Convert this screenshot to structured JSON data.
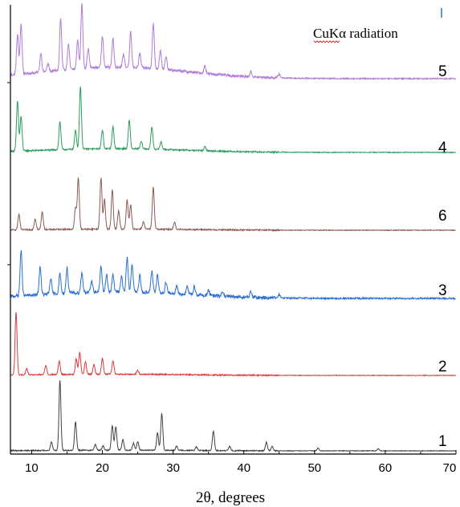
{
  "chart_data": {
    "type": "line",
    "title": "",
    "xlabel": "2θ, degrees",
    "ylabel": "",
    "xlim": [
      7,
      70
    ],
    "x_ticks": [
      10,
      20,
      30,
      40,
      50,
      60,
      70
    ],
    "grid": false,
    "annotation": "CuKα radiation",
    "series_order_top_to_bottom": [
      "5",
      "4",
      "6",
      "3",
      "2",
      "1"
    ],
    "series": [
      {
        "name": "5",
        "color": "#b07cd6",
        "baseline": 0.18,
        "noise": 0.02,
        "peaks": [
          [
            8.0,
            0.62
          ],
          [
            8.5,
            0.78
          ],
          [
            11.3,
            0.3
          ],
          [
            12.3,
            0.12
          ],
          [
            14.1,
            0.8
          ],
          [
            15.2,
            0.4
          ],
          [
            16.5,
            0.45
          ],
          [
            17.1,
            1.0
          ],
          [
            18.0,
            0.3
          ],
          [
            20.0,
            0.5
          ],
          [
            21.5,
            0.45
          ],
          [
            23.0,
            0.2
          ],
          [
            24.0,
            0.55
          ],
          [
            25.3,
            0.22
          ],
          [
            27.2,
            0.7
          ],
          [
            28.2,
            0.3
          ],
          [
            29.0,
            0.2
          ],
          [
            34.5,
            0.12
          ],
          [
            41.0,
            0.08
          ],
          [
            45.0,
            0.06
          ]
        ]
      },
      {
        "name": "4",
        "color": "#2e9b5e",
        "baseline": 0.06,
        "noise": 0.012,
        "peaks": [
          [
            8.0,
            0.8
          ],
          [
            8.5,
            0.55
          ],
          [
            14.0,
            0.45
          ],
          [
            16.2,
            0.3
          ],
          [
            16.9,
            1.0
          ],
          [
            20.0,
            0.3
          ],
          [
            21.5,
            0.35
          ],
          [
            23.8,
            0.45
          ],
          [
            25.5,
            0.12
          ],
          [
            27.0,
            0.35
          ],
          [
            28.3,
            0.12
          ],
          [
            34.5,
            0.06
          ]
        ]
      },
      {
        "name": "6",
        "color": "#8b5a52",
        "baseline": 0.02,
        "noise": 0.012,
        "peaks": [
          [
            8.2,
            0.25
          ],
          [
            10.5,
            0.18
          ],
          [
            11.5,
            0.3
          ],
          [
            16.2,
            0.35
          ],
          [
            16.6,
            0.85
          ],
          [
            19.8,
            0.85
          ],
          [
            20.3,
            0.5
          ],
          [
            21.4,
            0.65
          ],
          [
            22.3,
            0.3
          ],
          [
            23.5,
            0.48
          ],
          [
            24.0,
            0.4
          ],
          [
            25.8,
            0.12
          ],
          [
            27.2,
            0.7
          ],
          [
            30.2,
            0.12
          ]
        ]
      },
      {
        "name": "3",
        "color": "#2a6fd1",
        "baseline": 0.12,
        "noise": 0.03,
        "peaks": [
          [
            8.5,
            0.8
          ],
          [
            11.2,
            0.5
          ],
          [
            12.7,
            0.28
          ],
          [
            14.0,
            0.35
          ],
          [
            15.0,
            0.45
          ],
          [
            17.1,
            0.35
          ],
          [
            18.5,
            0.2
          ],
          [
            19.8,
            0.45
          ],
          [
            20.6,
            0.3
          ],
          [
            21.5,
            0.3
          ],
          [
            22.7,
            0.28
          ],
          [
            23.5,
            0.6
          ],
          [
            24.2,
            0.5
          ],
          [
            25.3,
            0.3
          ],
          [
            27.0,
            0.38
          ],
          [
            27.8,
            0.32
          ],
          [
            29.0,
            0.2
          ],
          [
            30.5,
            0.15
          ],
          [
            32.0,
            0.13
          ],
          [
            33.0,
            0.15
          ],
          [
            35.0,
            0.1
          ],
          [
            37.0,
            0.08
          ],
          [
            41.0,
            0.1
          ],
          [
            45.0,
            0.06
          ]
        ]
      },
      {
        "name": "2",
        "color": "#d93b3b",
        "baseline": 0.02,
        "noise": 0.01,
        "peaks": [
          [
            7.8,
            1.0
          ],
          [
            9.3,
            0.1
          ],
          [
            12.0,
            0.15
          ],
          [
            13.9,
            0.22
          ],
          [
            16.3,
            0.25
          ],
          [
            16.8,
            0.35
          ],
          [
            17.6,
            0.2
          ],
          [
            18.8,
            0.15
          ],
          [
            20.0,
            0.25
          ],
          [
            21.5,
            0.22
          ],
          [
            25.0,
            0.06
          ]
        ]
      },
      {
        "name": "1",
        "color": "#404040",
        "baseline": 0.01,
        "noise": 0.008,
        "peaks": [
          [
            12.8,
            0.12
          ],
          [
            14.0,
            1.0
          ],
          [
            16.2,
            0.4
          ],
          [
            19.0,
            0.08
          ],
          [
            20.1,
            0.06
          ],
          [
            21.4,
            0.35
          ],
          [
            21.9,
            0.33
          ],
          [
            22.9,
            0.15
          ],
          [
            24.4,
            0.1
          ],
          [
            25.0,
            0.12
          ],
          [
            27.8,
            0.25
          ],
          [
            28.4,
            0.52
          ],
          [
            30.5,
            0.06
          ],
          [
            33.3,
            0.05
          ],
          [
            35.7,
            0.28
          ],
          [
            38.0,
            0.06
          ],
          [
            43.2,
            0.12
          ],
          [
            44.0,
            0.06
          ],
          [
            50.5,
            0.04
          ],
          [
            59.0,
            0.03
          ]
        ]
      }
    ]
  }
}
